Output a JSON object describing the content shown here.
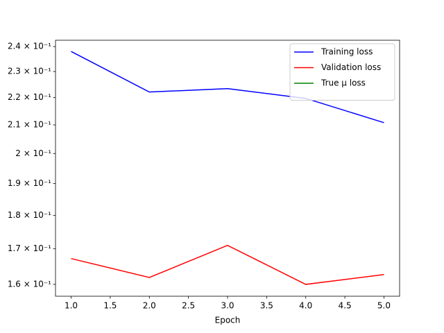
{
  "chart_data": {
    "type": "line",
    "x_label": "Epoch",
    "x": [
      1,
      2,
      3,
      4,
      5
    ],
    "series": [
      {
        "name": "Training loss",
        "color": "#0000ff",
        "values": [
          0.238,
          0.2221,
          0.2234,
          0.2197,
          0.2108
        ]
      },
      {
        "name": "Validation loss",
        "color": "#ff0000",
        "values": [
          0.1672,
          0.1619,
          0.171,
          0.16,
          0.1627
        ]
      },
      {
        "name": "True μ loss",
        "color": "#008000",
        "values": [
          null,
          null,
          null,
          null,
          null
        ]
      }
    ],
    "xlim": [
      0.8,
      5.2
    ],
    "xticks": [
      {
        "value": 1,
        "label": "1.0"
      },
      1.5,
      {
        "value": 2,
        "label": "2.0"
      },
      2.5,
      {
        "value": 3,
        "label": "3.0"
      },
      3.5,
      {
        "value": 4,
        "label": "4.0"
      },
      4.5,
      {
        "value": 5,
        "label": "5.0"
      }
    ],
    "ylim": [
      0.1568,
      0.2426
    ],
    "yscale": "log",
    "yticks": [
      {
        "value": 0.16,
        "label": "1.6 × 10⁻¹"
      },
      {
        "value": 0.17,
        "label": "1.7 × 10⁻¹"
      },
      {
        "value": 0.18,
        "label": "1.8 × 10⁻¹"
      },
      {
        "value": 0.19,
        "label": "1.9 × 10⁻¹"
      },
      {
        "value": 0.2,
        "label": "2 × 10⁻¹"
      },
      {
        "value": 0.21,
        "label": "2.1 × 10⁻¹"
      },
      {
        "value": 0.22,
        "label": "2.2 × 10⁻¹"
      },
      {
        "value": 0.23,
        "label": "2.3 × 10⁻¹"
      },
      {
        "value": 0.24,
        "label": "2.4 × 10⁻¹"
      }
    ],
    "legend": "upper right",
    "grid": false
  }
}
